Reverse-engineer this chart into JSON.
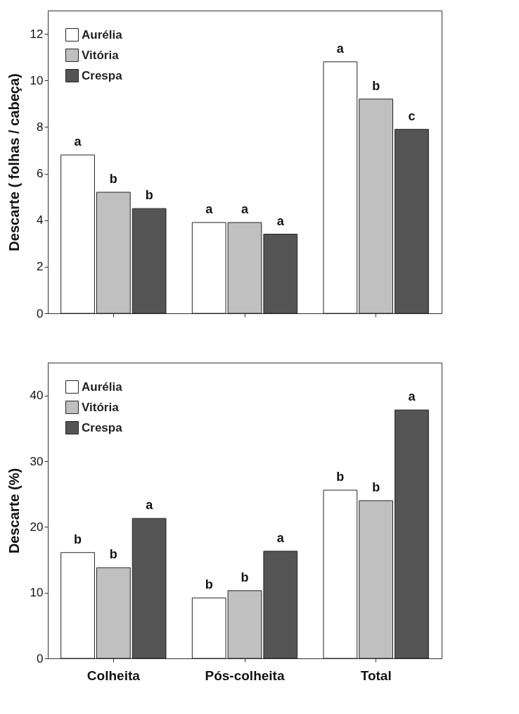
{
  "chart_data": [
    {
      "type": "bar",
      "categories": [
        null,
        null,
        null
      ],
      "ylabel": "Descarte ( folhas / cabeça)",
      "ylim": [
        0,
        13
      ],
      "yticks": [
        0,
        2,
        4,
        6,
        8,
        10,
        12
      ],
      "legend": "top left",
      "series": [
        {
          "name": "Aurélia",
          "color": "#ffffff",
          "values": [
            6.8,
            3.9,
            10.8
          ],
          "value_labels": [
            "a",
            "a",
            "a"
          ]
        },
        {
          "name": "Vitória",
          "color": "#c0c0c0",
          "values": [
            5.2,
            3.9,
            9.2
          ],
          "value_labels": [
            "b",
            "a",
            "b"
          ]
        },
        {
          "name": "Crespa",
          "color": "#555555",
          "values": [
            4.5,
            3.4,
            7.9
          ],
          "value_labels": [
            "b",
            "a",
            "c"
          ]
        }
      ]
    },
    {
      "type": "bar",
      "categories": [
        "Colheita",
        "Pós-colheita",
        "Total"
      ],
      "ylabel": "Descarte (%)",
      "ylim": [
        0,
        45
      ],
      "yticks": [
        0,
        10,
        20,
        30,
        40
      ],
      "legend": "top left",
      "series": [
        {
          "name": "Aurélia",
          "color": "#ffffff",
          "values": [
            16.1,
            9.2,
            25.6
          ],
          "value_labels": [
            "b",
            "b",
            "b"
          ]
        },
        {
          "name": "Vitória",
          "color": "#c0c0c0",
          "values": [
            13.8,
            10.3,
            24.0
          ],
          "value_labels": [
            "b",
            "b",
            "b"
          ]
        },
        {
          "name": "Crespa",
          "color": "#555555",
          "values": [
            21.3,
            16.3,
            37.8
          ],
          "value_labels": [
            "a",
            "a",
            "a"
          ]
        }
      ]
    }
  ]
}
